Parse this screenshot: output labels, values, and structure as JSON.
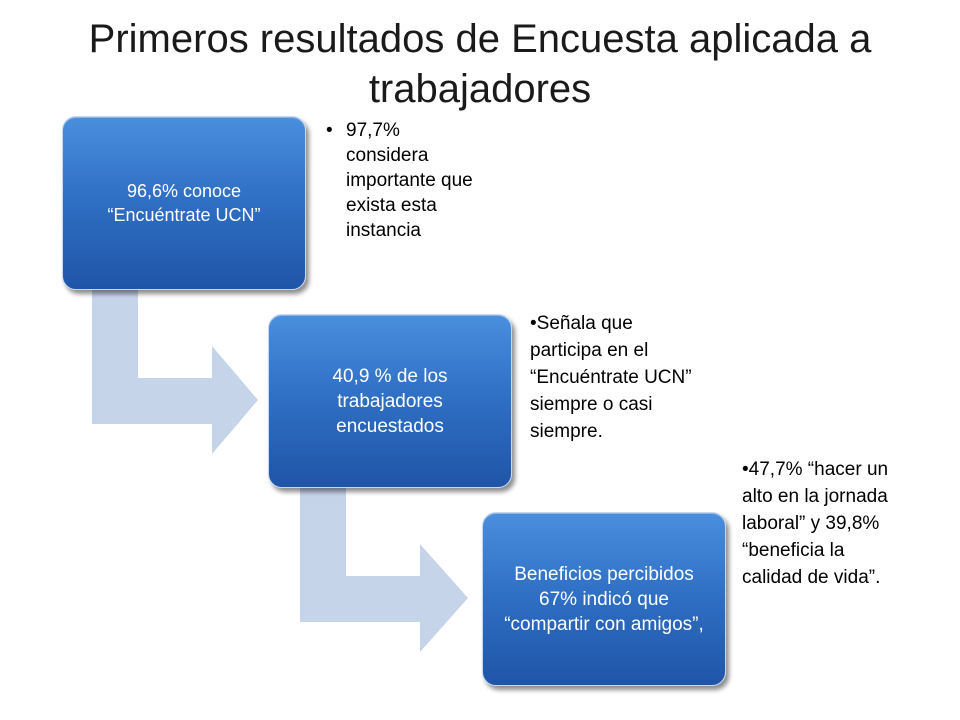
{
  "title": "Primeros resultados de Encuesta aplicada a trabajadores",
  "steps": [
    {
      "label": "96,6% conoce “Encuéntrate UCN”"
    },
    {
      "label": "40,9 % de los trabajadores encuestados"
    },
    {
      "label": "Beneficios percibidos 67% indicó que “compartir con amigos”,"
    }
  ],
  "notes": [
    {
      "bullet": "•",
      "text": "97,7% considera importante que exista esta instancia"
    },
    {
      "text": "•Señala que participa en el “Encuéntrate UCN” siempre o casi siempre."
    },
    {
      "text": "•47,7% “hacer un alto en la jornada laboral” y 39,8% “beneficia la calidad de vida”."
    }
  ],
  "colors": {
    "box": "#2f6fc4",
    "connector": "#c6d4ea"
  }
}
